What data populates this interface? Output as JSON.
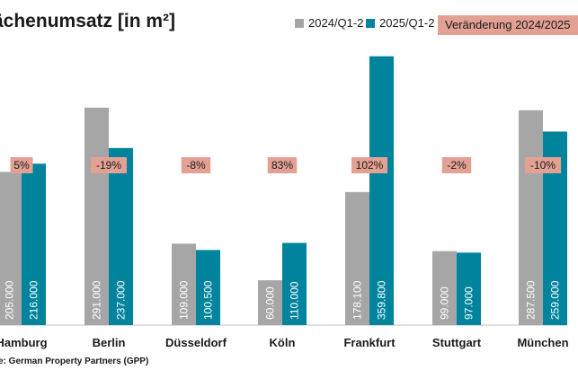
{
  "chart_data": {
    "type": "bar",
    "title": "ächenumsatz [in m²]",
    "categories": [
      "Hamburg",
      "Berlin",
      "Düsseldorf",
      "Köln",
      "Frankfurt",
      "Stuttgart",
      "München"
    ],
    "series": [
      {
        "name": "2024/Q1-2",
        "values": [
          205000,
          291000,
          109000,
          60000,
          178100,
          99000,
          287500
        ],
        "labels": [
          "205.000",
          "291.000",
          "109.000",
          "60.000",
          "178.100",
          "99.000",
          "287.500"
        ]
      },
      {
        "name": "2025/Q1-2",
        "values": [
          216000,
          237000,
          100500,
          110000,
          359800,
          97000,
          259000
        ],
        "labels": [
          "216.000",
          "237.000",
          "100.500",
          "110.000",
          "359.800",
          "97.000",
          "259.000"
        ]
      }
    ],
    "change": {
      "name": "Veränderung 2024/2025",
      "labels": [
        "5%",
        "-19%",
        "-8%",
        "83%",
        "102%",
        "-2%",
        "-10%"
      ]
    },
    "ylim": [
      0,
      375000
    ],
    "grid": false,
    "legend": "top-right",
    "colors": {
      "series_2024": "#a6a6a6",
      "series_2025": "#00849e",
      "change": "#e3a194"
    }
  },
  "source": "e: German Property Partners (GPP)"
}
